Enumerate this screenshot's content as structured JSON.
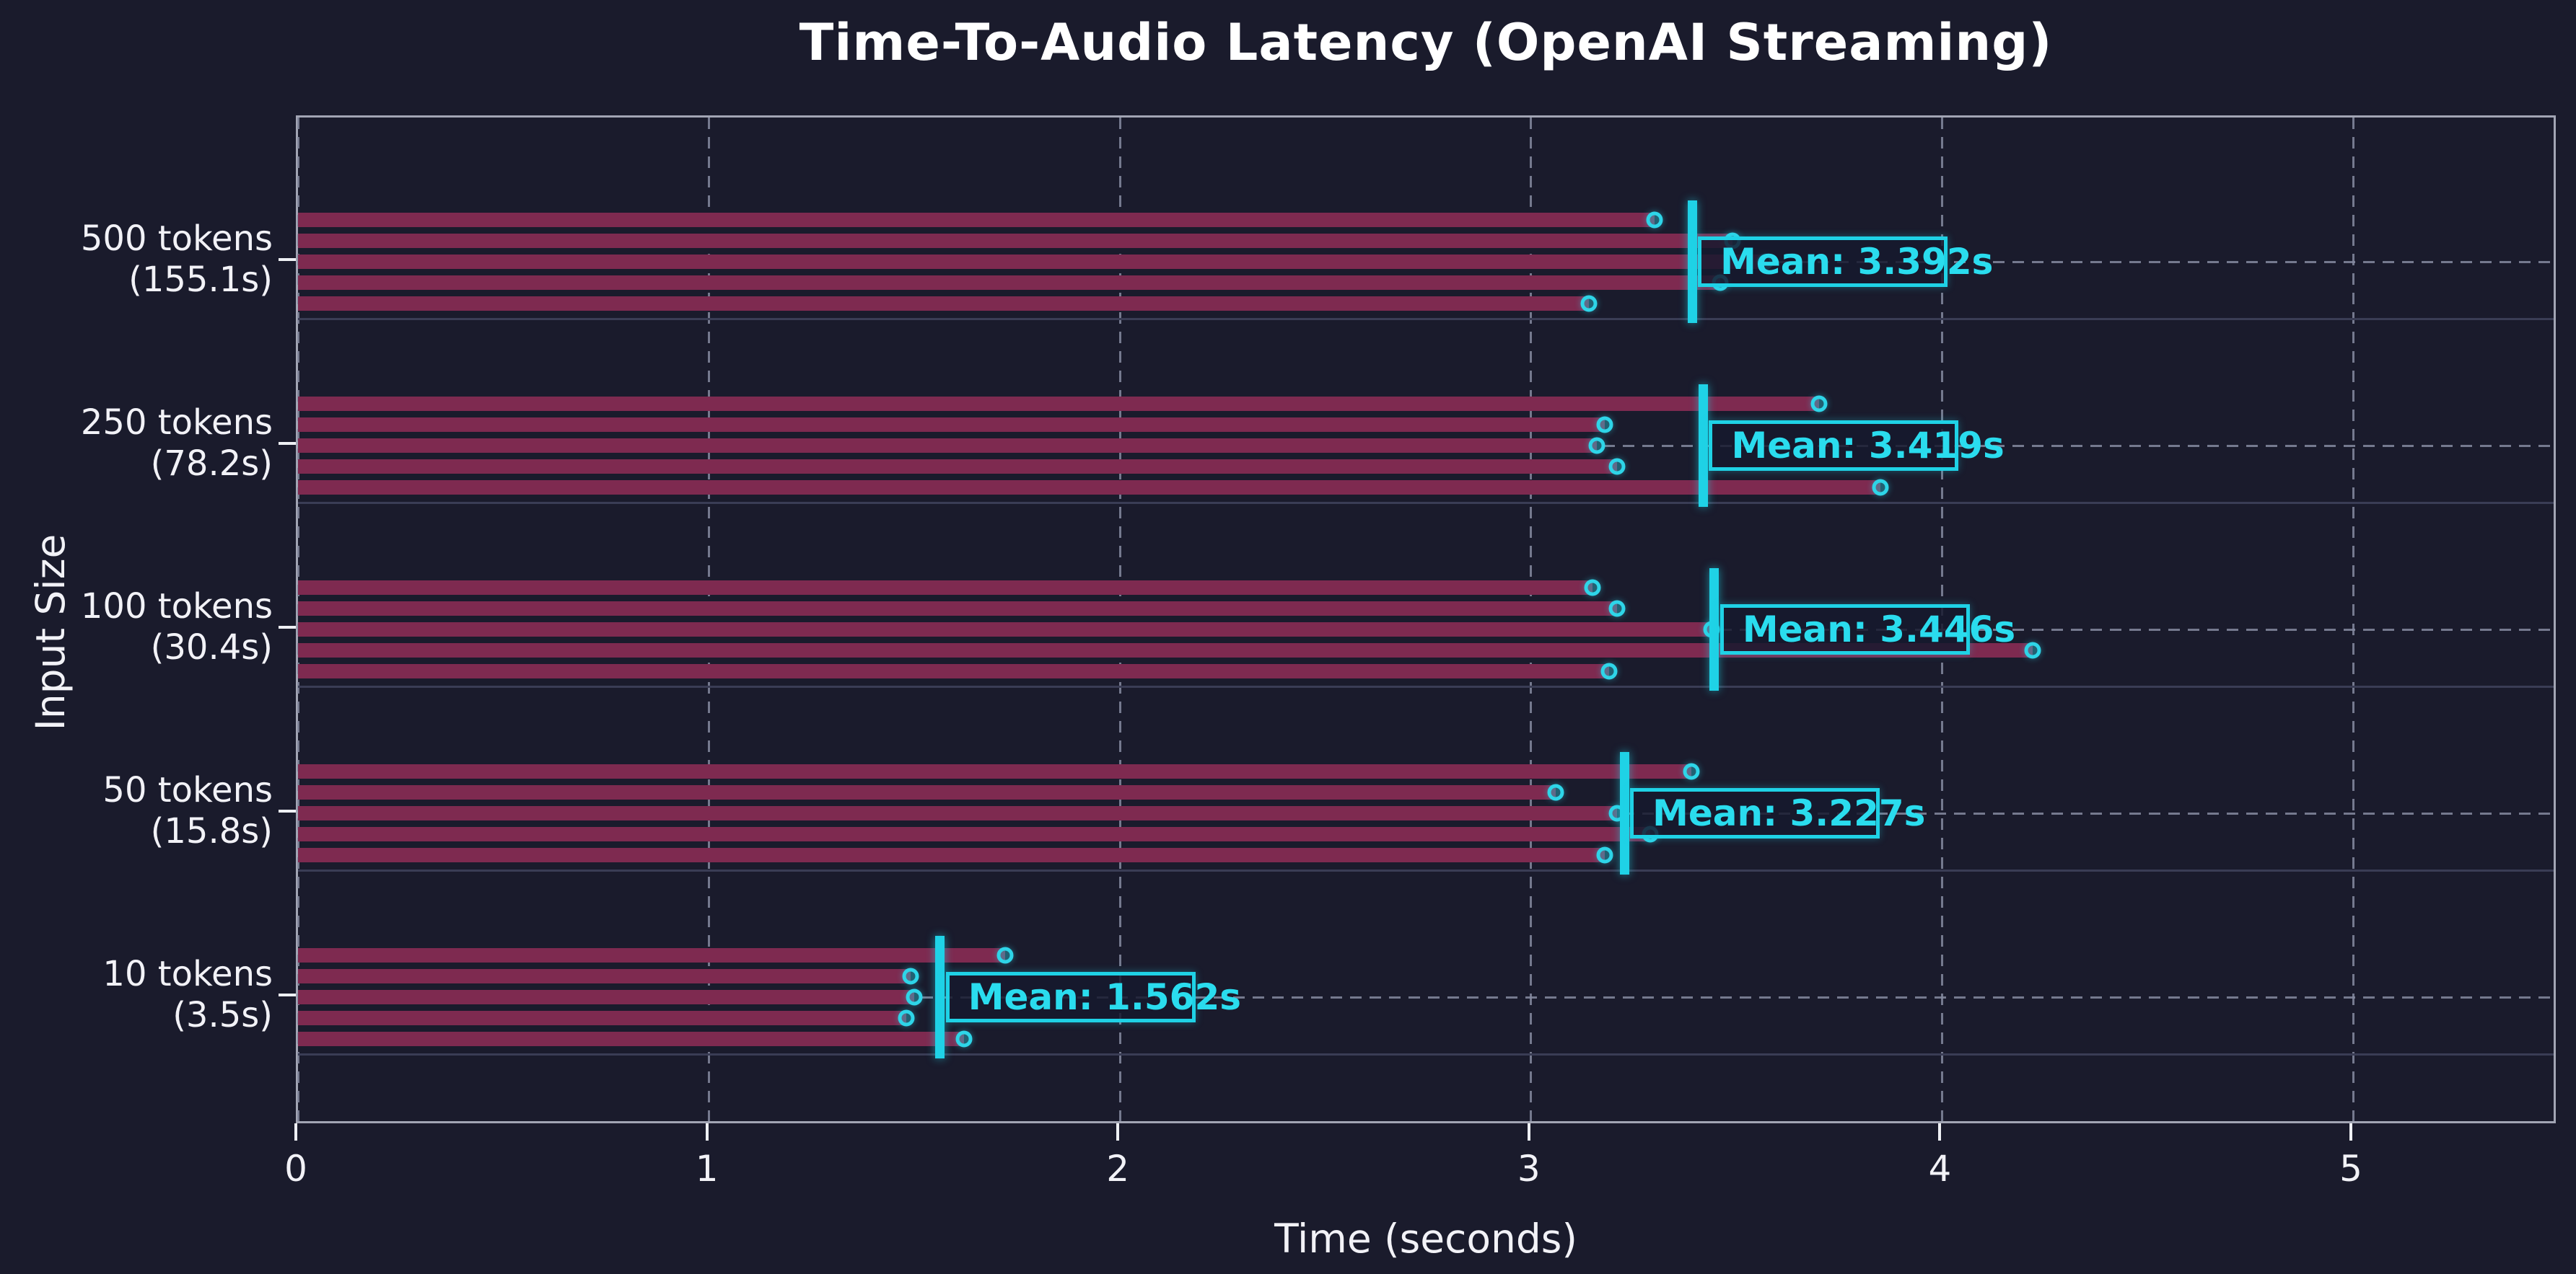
{
  "title": "Time-To-Audio Latency (OpenAI Streaming)",
  "axes": {
    "xlabel": "Time (seconds)",
    "ylabel": "Input Size",
    "x_tick_labels": [
      "0",
      "1",
      "2",
      "3",
      "4",
      "5"
    ]
  },
  "colors": {
    "background": "#1a1b2c",
    "bar": "#7e2a50",
    "mean_accent": "#1fd2e6",
    "grid": "#858aa0",
    "separator": "#3a3d55",
    "text": "#f2f2f7"
  },
  "chart_data": {
    "type": "bar",
    "orientation": "horizontal",
    "title": "Time-To-Audio Latency (OpenAI Streaming)",
    "xlabel": "Time (seconds)",
    "ylabel": "Input Size",
    "xlim": [
      0,
      5.5
    ],
    "x_ticks": [
      0,
      1,
      2,
      3,
      4,
      5
    ],
    "grid": "dashed vertical at integer seconds, dashed horizontal at group centers",
    "legend": "none",
    "groups": [
      {
        "label": "500 tokens",
        "duration_label": "(155.1s)",
        "runs_seconds": [
          3.3,
          3.49,
          3.57,
          3.46,
          3.14
        ],
        "mean_seconds": 3.392,
        "mean_label": "Mean: 3.392s"
      },
      {
        "label": "250 tokens",
        "duration_label": "(78.2s)",
        "runs_seconds": [
          3.7,
          3.18,
          3.16,
          3.21,
          3.85
        ],
        "mean_seconds": 3.419,
        "mean_label": "Mean: 3.419s"
      },
      {
        "label": "100 tokens",
        "duration_label": "(30.4s)",
        "runs_seconds": [
          3.15,
          3.21,
          3.44,
          4.22,
          3.19
        ],
        "mean_seconds": 3.446,
        "mean_label": "Mean: 3.446s"
      },
      {
        "label": "50 tokens",
        "duration_label": "(15.8s)",
        "runs_seconds": [
          3.39,
          3.06,
          3.21,
          3.29,
          3.18
        ],
        "mean_seconds": 3.227,
        "mean_label": "Mean: 3.227s"
      },
      {
        "label": "10 tokens",
        "duration_label": "(3.5s)",
        "runs_seconds": [
          1.72,
          1.49,
          1.5,
          1.48,
          1.62
        ],
        "mean_seconds": 1.562,
        "mean_label": "Mean: 1.562s"
      }
    ]
  }
}
